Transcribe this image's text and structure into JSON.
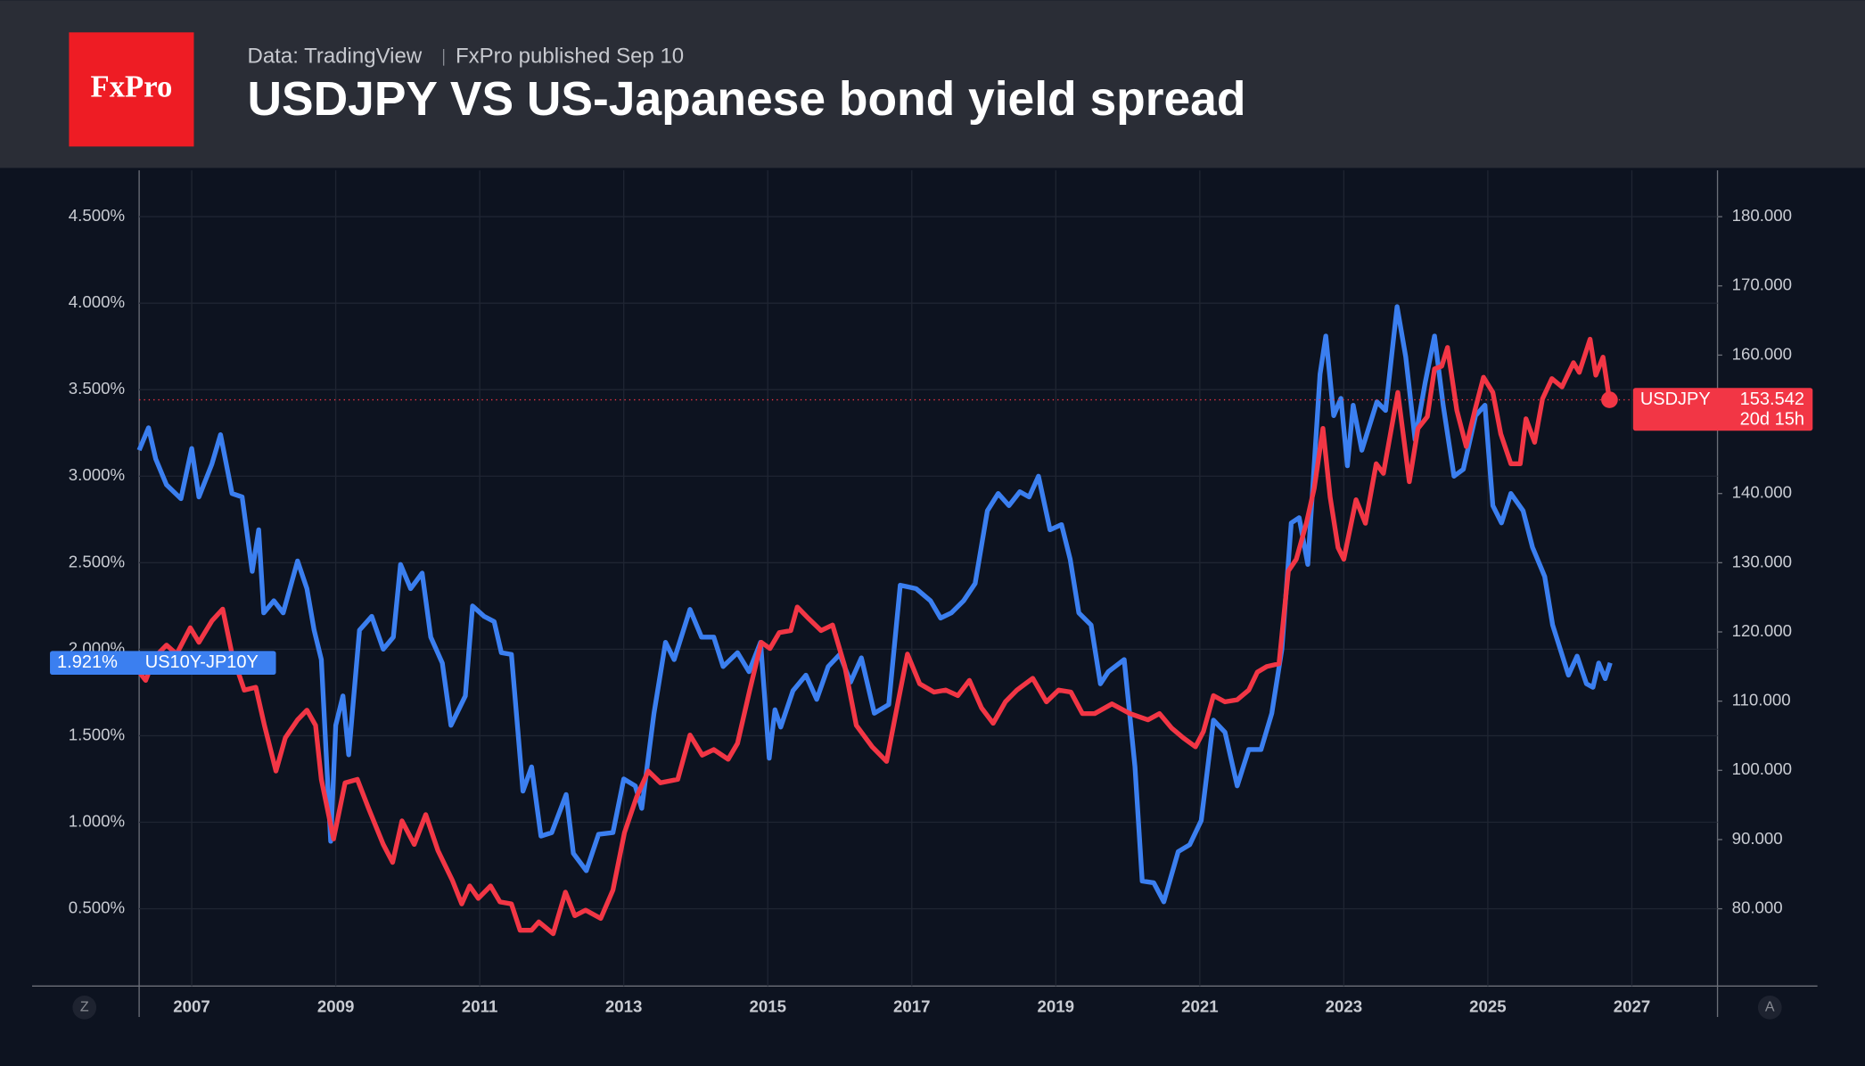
{
  "header": {
    "logo": "FxPro",
    "source": "Data: TradingView",
    "published": "FxPro published Sep 10"
  },
  "chart_data": {
    "type": "line",
    "title": "USDJPY VS US-Japanese bond yield spread",
    "xlim": [
      2006.27,
      2028.19
    ],
    "xticks": [
      2007,
      2009,
      2011,
      2013,
      2015,
      2017,
      2019,
      2021,
      2023,
      2025,
      2027
    ],
    "ylim": [
      0.053,
      4.768
    ],
    "yticks": [
      {
        "value": 0.5,
        "label": "0.500%"
      },
      {
        "value": 1,
        "label": "1.000%"
      },
      {
        "value": 1.5,
        "label": "1.500%"
      },
      {
        "value": 2,
        "label": "2.000%"
      },
      {
        "value": 2.5,
        "label": "2.500%"
      },
      {
        "value": 3,
        "label": "3.000%"
      },
      {
        "value": 3.5,
        "label": "3.500%"
      },
      {
        "value": 4,
        "label": "4.000%"
      },
      {
        "value": 4.5,
        "label": "4.500%"
      }
    ],
    "y2lim": [
      68.83,
      186.7
    ],
    "y2ticks": [
      {
        "value": 80,
        "label": "80.000"
      },
      {
        "value": 90,
        "label": "90.000"
      },
      {
        "value": 100,
        "label": "100.000"
      },
      {
        "value": 110,
        "label": "110.000"
      },
      {
        "value": 120,
        "label": "120.000"
      },
      {
        "value": 130,
        "label": "130.000"
      },
      {
        "value": 140,
        "label": "140.000"
      },
      {
        "value": 150,
        "label": "150.000"
      },
      {
        "value": 160,
        "label": "160.000"
      },
      {
        "value": 170,
        "label": "170.000"
      },
      {
        "value": 180,
        "label": "180.000"
      }
    ],
    "grid": true,
    "corner_buttons": [
      "Z",
      "A"
    ],
    "series": [
      {
        "name": "US10Y-JP10Y",
        "color": "#3b7ff0",
        "axis": "y",
        "x": [
          2006.27,
          2006.4,
          2006.5,
          2006.65,
          2006.85,
          2007.0,
          2007.1,
          2007.28,
          2007.4,
          2007.56,
          2007.7,
          2007.84,
          2007.93,
          2008.0,
          2008.14,
          2008.27,
          2008.47,
          2008.6,
          2008.7,
          2008.8,
          2008.93,
          2009.0,
          2009.1,
          2009.18,
          2009.33,
          2009.5,
          2009.66,
          2009.8,
          2009.9,
          2010.04,
          2010.2,
          2010.32,
          2010.48,
          2010.6,
          2010.8,
          2010.9,
          2011.06,
          2011.2,
          2011.3,
          2011.44,
          2011.6,
          2011.72,
          2011.85,
          2012.0,
          2012.2,
          2012.3,
          2012.48,
          2012.65,
          2012.85,
          2013.0,
          2013.16,
          2013.25,
          2013.42,
          2013.58,
          2013.7,
          2013.92,
          2014.08,
          2014.25,
          2014.38,
          2014.58,
          2014.74,
          2014.9,
          2015.02,
          2015.1,
          2015.18,
          2015.35,
          2015.53,
          2015.68,
          2015.84,
          2016.0,
          2016.15,
          2016.3,
          2016.48,
          2016.68,
          2016.84,
          2017.06,
          2017.26,
          2017.4,
          2017.55,
          2017.72,
          2017.88,
          2018.05,
          2018.2,
          2018.35,
          2018.5,
          2018.63,
          2018.76,
          2018.92,
          2019.08,
          2019.2,
          2019.32,
          2019.49,
          2019.62,
          2019.73,
          2019.95,
          2020.1,
          2020.2,
          2020.36,
          2020.5,
          2020.7,
          2020.86,
          2021.02,
          2021.19,
          2021.35,
          2021.52,
          2021.68,
          2021.85,
          2022.0,
          2022.14,
          2022.27,
          2022.38,
          2022.5,
          2022.67,
          2022.75,
          2022.86,
          2022.96,
          2023.05,
          2023.13,
          2023.25,
          2023.46,
          2023.58,
          2023.74,
          2023.86,
          2023.99,
          2024.13,
          2024.26,
          2024.38,
          2024.53,
          2024.66,
          2024.83,
          2024.96,
          2025.07,
          2025.19,
          2025.32,
          2025.49,
          2025.62,
          2025.79,
          2025.9,
          2026.12,
          2026.24,
          2026.37,
          2026.46,
          2026.54,
          2026.63,
          2026.7
        ],
        "values": [
          3.15,
          3.28,
          3.1,
          2.95,
          2.87,
          3.16,
          2.88,
          3.07,
          3.24,
          2.9,
          2.88,
          2.45,
          2.69,
          2.21,
          2.28,
          2.21,
          2.51,
          2.35,
          2.11,
          1.94,
          0.89,
          1.56,
          1.73,
          1.39,
          2.11,
          2.19,
          2.0,
          2.07,
          2.49,
          2.35,
          2.44,
          2.07,
          1.92,
          1.56,
          1.73,
          2.25,
          2.19,
          2.16,
          1.98,
          1.97,
          1.18,
          1.32,
          0.92,
          0.94,
          1.16,
          0.82,
          0.72,
          0.93,
          0.94,
          1.25,
          1.21,
          1.08,
          1.63,
          2.04,
          1.94,
          2.23,
          2.07,
          2.07,
          1.9,
          1.98,
          1.87,
          2.04,
          1.37,
          1.65,
          1.55,
          1.76,
          1.85,
          1.71,
          1.9,
          1.97,
          1.81,
          1.95,
          1.63,
          1.68,
          2.37,
          2.35,
          2.28,
          2.18,
          2.21,
          2.28,
          2.38,
          2.8,
          2.9,
          2.83,
          2.91,
          2.88,
          3.0,
          2.69,
          2.72,
          2.52,
          2.21,
          2.14,
          1.8,
          1.87,
          1.94,
          1.32,
          0.66,
          0.65,
          0.54,
          0.83,
          0.87,
          1.01,
          1.59,
          1.52,
          1.21,
          1.42,
          1.42,
          1.63,
          2.0,
          2.73,
          2.76,
          2.49,
          3.59,
          3.81,
          3.35,
          3.45,
          3.06,
          3.41,
          3.15,
          3.43,
          3.38,
          3.98,
          3.69,
          3.21,
          3.54,
          3.81,
          3.41,
          3.0,
          3.04,
          3.35,
          3.41,
          2.83,
          2.73,
          2.9,
          2.8,
          2.59,
          2.42,
          2.14,
          1.85,
          1.96,
          1.8,
          1.78,
          1.92,
          1.83,
          1.921
        ],
        "last_label": "1.921%"
      },
      {
        "name": "USDJPY",
        "color": "#f23645",
        "axis": "y2",
        "x": [
          2006.27,
          2006.36,
          2006.49,
          2006.65,
          2006.79,
          2006.98,
          2007.1,
          2007.28,
          2007.43,
          2007.56,
          2007.73,
          2007.89,
          2008.01,
          2008.17,
          2008.3,
          2008.47,
          2008.6,
          2008.72,
          2008.8,
          2008.97,
          2009.13,
          2009.3,
          2009.46,
          2009.66,
          2009.79,
          2009.92,
          2010.09,
          2010.25,
          2010.42,
          2010.62,
          2010.75,
          2010.86,
          2010.98,
          2011.15,
          2011.28,
          2011.44,
          2011.56,
          2011.72,
          2011.82,
          2012.02,
          2012.19,
          2012.32,
          2012.47,
          2012.68,
          2012.85,
          2013.01,
          2013.18,
          2013.34,
          2013.51,
          2013.75,
          2013.92,
          2014.09,
          2014.25,
          2014.45,
          2014.58,
          2014.75,
          2014.91,
          2015.03,
          2015.16,
          2015.32,
          2015.41,
          2015.57,
          2015.74,
          2015.9,
          2016.07,
          2016.23,
          2016.45,
          2016.65,
          2016.81,
          2016.94,
          2017.11,
          2017.31,
          2017.47,
          2017.64,
          2017.8,
          2017.97,
          2018.13,
          2018.3,
          2018.46,
          2018.68,
          2018.87,
          2019.04,
          2019.21,
          2019.37,
          2019.54,
          2019.78,
          2020.03,
          2020.28,
          2020.44,
          2020.61,
          2020.77,
          2020.94,
          2021.05,
          2021.19,
          2021.35,
          2021.52,
          2021.68,
          2021.8,
          2021.93,
          2022.1,
          2022.23,
          2022.34,
          2022.48,
          2022.59,
          2022.71,
          2022.81,
          2022.92,
          2023.0,
          2023.17,
          2023.3,
          2023.45,
          2023.55,
          2023.75,
          2023.91,
          2024.03,
          2024.16,
          2024.26,
          2024.36,
          2024.44,
          2024.57,
          2024.7,
          2024.82,
          2024.94,
          2025.07,
          2025.18,
          2025.32,
          2025.45,
          2025.53,
          2025.65,
          2025.76,
          2025.89,
          2026.03,
          2026.19,
          2026.27,
          2026.42,
          2026.5,
          2026.6,
          2026.69
        ],
        "values": [
          114.2,
          113,
          116.4,
          118.1,
          116.8,
          120.6,
          118.5,
          121.6,
          123.3,
          116.8,
          111.6,
          112,
          106.5,
          99.9,
          104.7,
          107.3,
          108.7,
          106.5,
          98.7,
          90.1,
          98.2,
          98.7,
          94.4,
          89.3,
          86.7,
          92.7,
          89.3,
          93.6,
          88.4,
          84.1,
          80.7,
          83.3,
          81.5,
          83.3,
          81,
          80.7,
          76.9,
          76.9,
          78.1,
          76.4,
          82.4,
          79,
          79.8,
          78.6,
          82.7,
          91,
          96.2,
          99.9,
          98.2,
          98.7,
          105.1,
          102.2,
          103,
          101.6,
          103.9,
          111.6,
          118.5,
          117.6,
          119.9,
          120.2,
          123.6,
          121.9,
          120.2,
          121,
          115,
          106.5,
          103.4,
          101.3,
          109.9,
          116.8,
          112.5,
          111.3,
          111.6,
          110.8,
          113,
          109,
          106.8,
          109.9,
          111.6,
          113.3,
          109.9,
          111.6,
          111.3,
          108.2,
          108.2,
          109.6,
          108.2,
          107.3,
          108.2,
          106.1,
          104.7,
          103.4,
          105.6,
          110.8,
          109.9,
          110.2,
          111.6,
          114.2,
          115,
          115.4,
          128.8,
          130.5,
          135.7,
          140.8,
          149.4,
          139.5,
          132.2,
          130.5,
          139.1,
          135.7,
          144.3,
          142.9,
          154.6,
          141.7,
          149.4,
          151.1,
          158,
          158.4,
          161.1,
          152,
          146.8,
          152,
          156.8,
          154.6,
          148.6,
          144.3,
          144.3,
          150.8,
          147.4,
          153.7,
          156.6,
          155.4,
          158.9,
          157.5,
          162.3,
          157.1,
          159.7,
          153.542
        ],
        "countdown": "20d 15h"
      }
    ]
  }
}
